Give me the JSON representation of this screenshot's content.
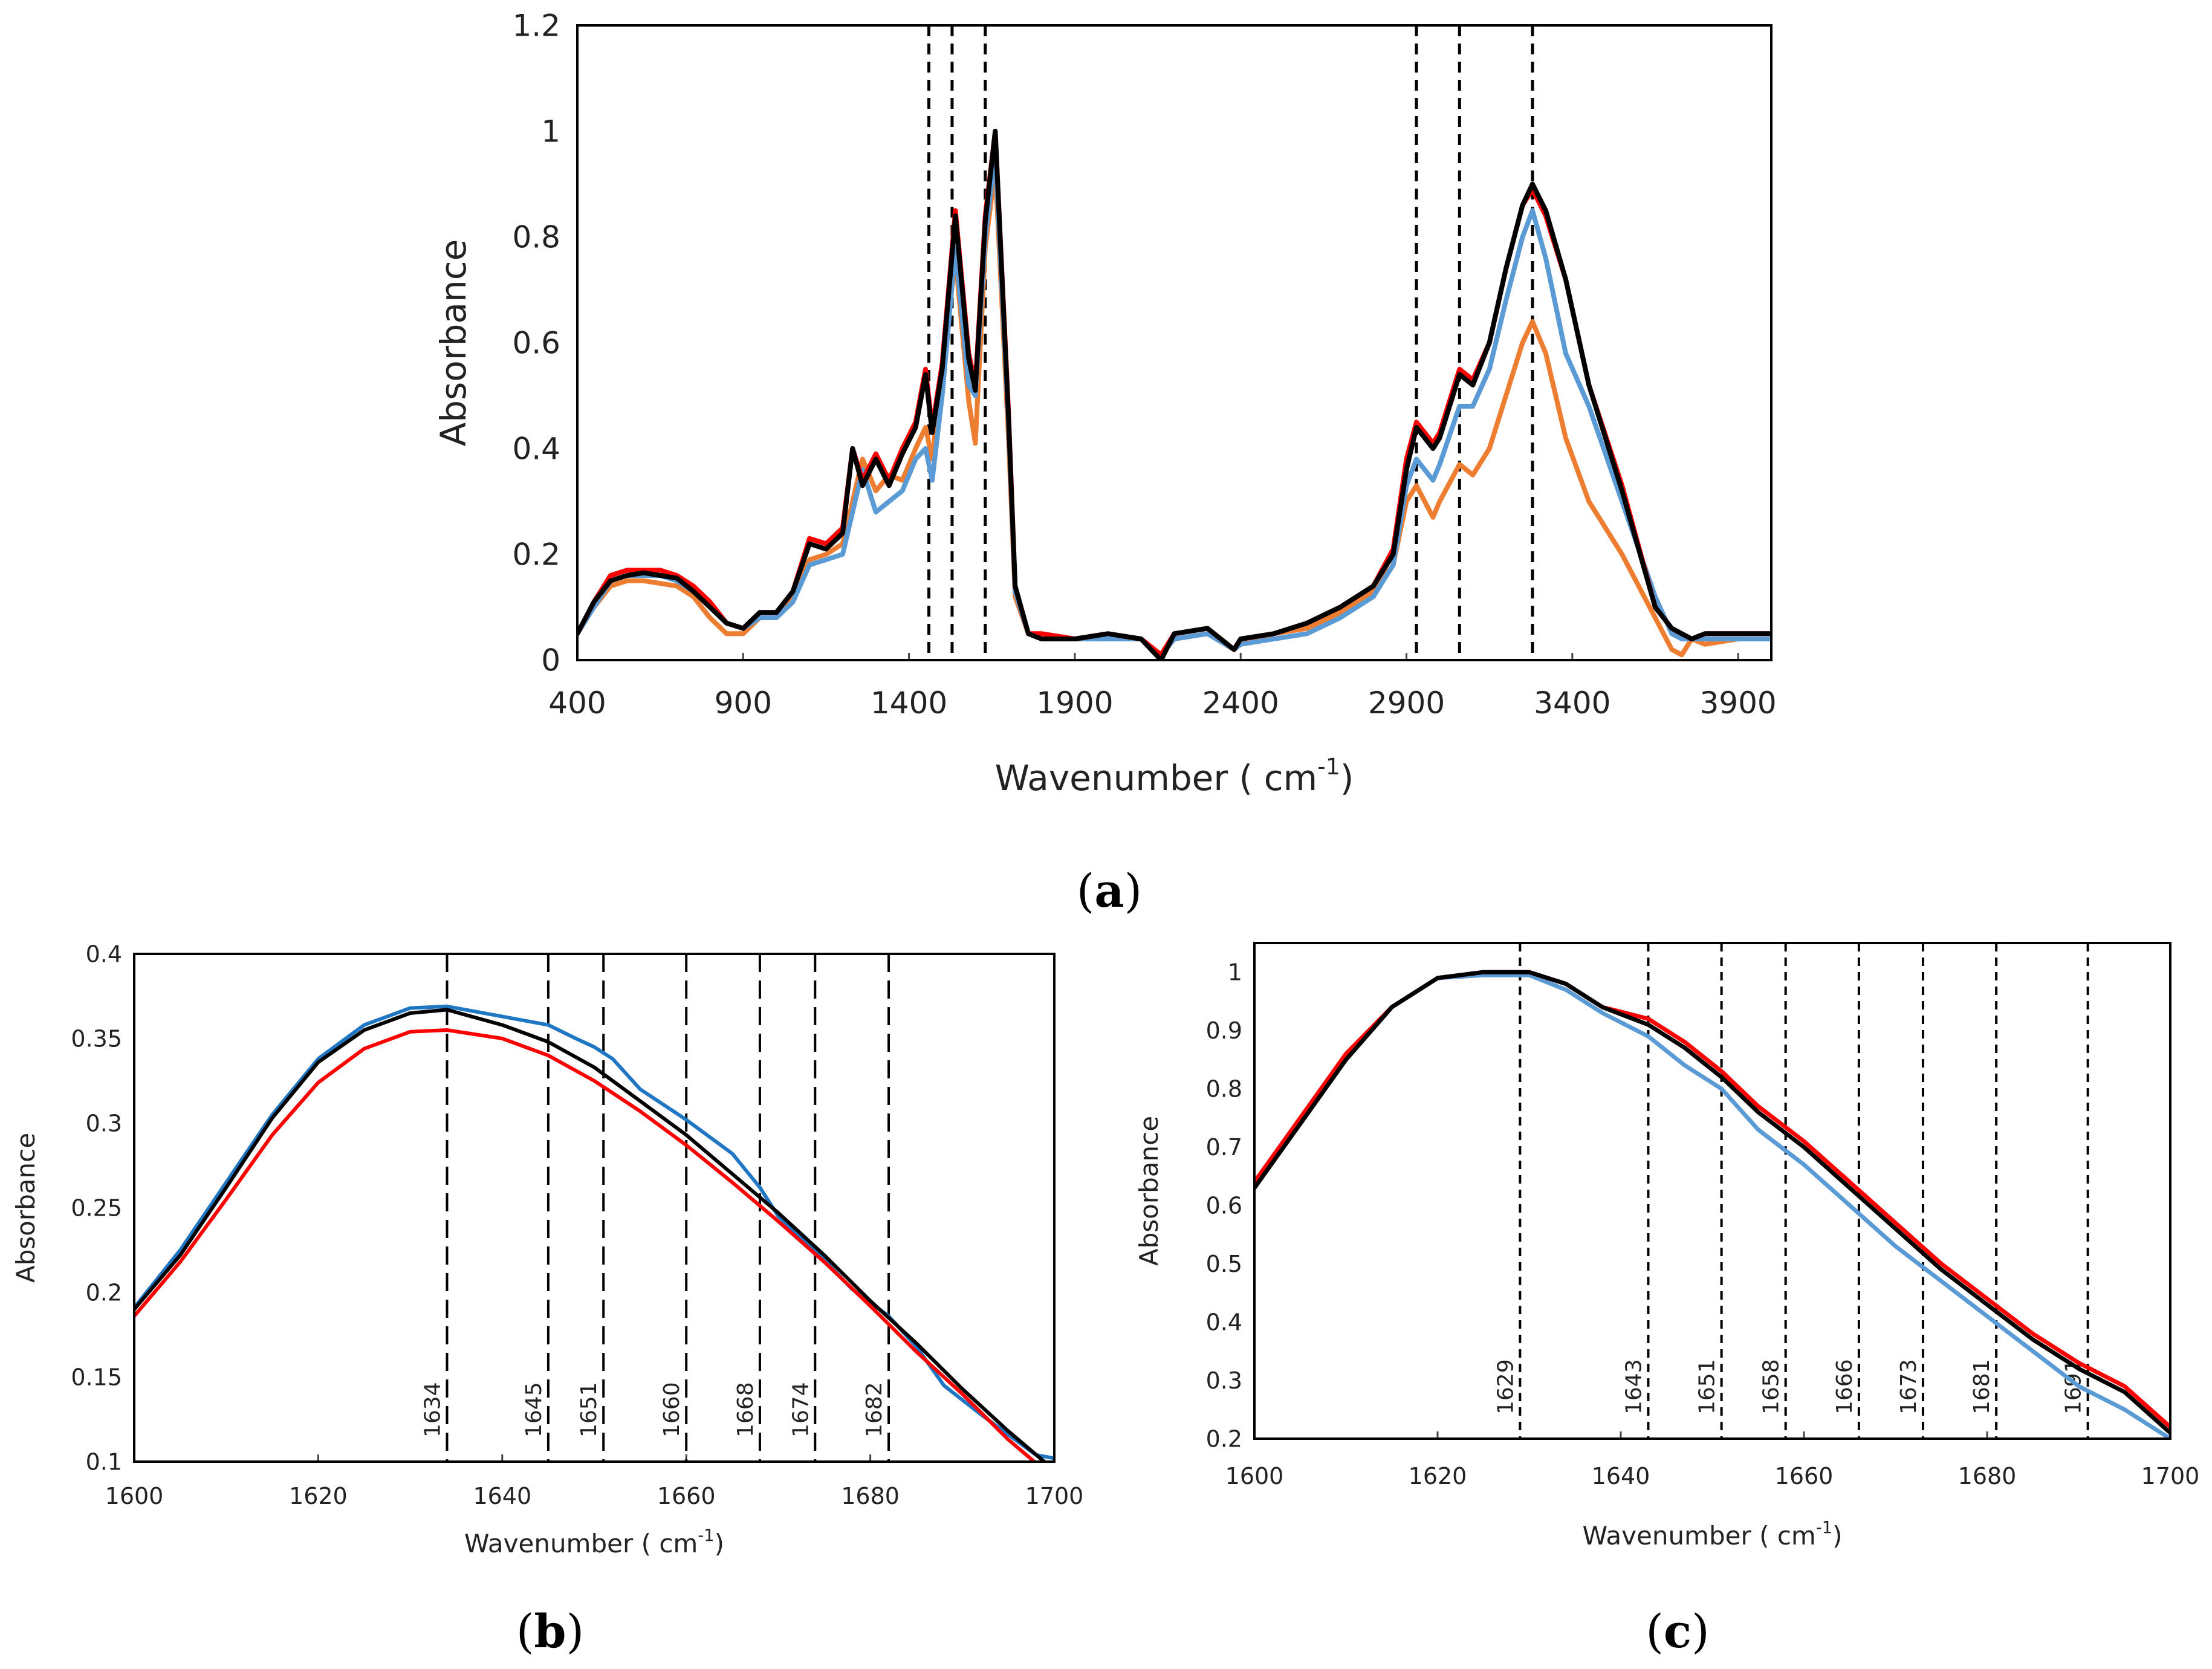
{
  "chart_data": [
    {
      "panel": "(a)",
      "type": "line",
      "xlabel": "Wavenumber ( cm",
      "xlabel_sup": "-1",
      "xlabel_end": ")",
      "ylabel": "Absorbance",
      "xlim": [
        400,
        4000
      ],
      "ylim": [
        0,
        1.2
      ],
      "xticks": [
        400,
        900,
        1400,
        1900,
        2400,
        2900,
        3400,
        3900
      ],
      "xtick_labels": [
        "400",
        "900",
        "1400",
        "1900",
        "2400",
        "2900",
        "3400",
        "3900"
      ],
      "yticks": [
        0,
        0.2,
        0.4,
        0.6,
        0.8,
        1.0,
        1.2
      ],
      "ytick_labels": [
        "0",
        "0.2",
        "0.4",
        "0.6",
        "0.8",
        "1",
        "1.2"
      ],
      "vlines": [
        1460,
        1530,
        1630,
        2930,
        3060,
        3280
      ],
      "grid": false,
      "series": [
        {
          "color": "#ed7d31",
          "x": [
            400,
            450,
            500,
            550,
            600,
            650,
            700,
            750,
            800,
            850,
            900,
            950,
            1000,
            1050,
            1100,
            1150,
            1200,
            1230,
            1260,
            1300,
            1340,
            1380,
            1420,
            1450,
            1470,
            1500,
            1540,
            1580,
            1600,
            1630,
            1660,
            1700,
            1720,
            1760,
            1800,
            1900,
            2000,
            2100,
            2160,
            2200,
            2300,
            2380,
            2400,
            2500,
            2600,
            2700,
            2800,
            2860,
            2900,
            2930,
            2980,
            3000,
            3060,
            3100,
            3150,
            3200,
            3250,
            3280,
            3320,
            3380,
            3450,
            3550,
            3650,
            3700,
            3730,
            3760,
            3800,
            3900,
            4000
          ],
          "y": [
            0.05,
            0.1,
            0.14,
            0.15,
            0.15,
            0.145,
            0.14,
            0.12,
            0.08,
            0.05,
            0.05,
            0.08,
            0.08,
            0.12,
            0.19,
            0.2,
            0.22,
            0.3,
            0.38,
            0.32,
            0.35,
            0.34,
            0.4,
            0.44,
            0.38,
            0.55,
            0.76,
            0.49,
            0.41,
            0.78,
            0.93,
            0.42,
            0.12,
            0.05,
            0.04,
            0.04,
            0.04,
            0.04,
            0.01,
            0.04,
            0.05,
            0.02,
            0.03,
            0.05,
            0.06,
            0.09,
            0.13,
            0.18,
            0.3,
            0.33,
            0.27,
            0.3,
            0.37,
            0.35,
            0.4,
            0.5,
            0.6,
            0.64,
            0.58,
            0.42,
            0.3,
            0.2,
            0.08,
            0.02,
            0.01,
            0.04,
            0.03,
            0.04,
            0.04
          ]
        },
        {
          "color": "#5b9bd5",
          "x": [
            400,
            450,
            500,
            550,
            600,
            650,
            700,
            750,
            800,
            850,
            900,
            950,
            1000,
            1050,
            1100,
            1150,
            1200,
            1230,
            1260,
            1300,
            1340,
            1380,
            1420,
            1450,
            1470,
            1500,
            1540,
            1580,
            1600,
            1630,
            1660,
            1700,
            1720,
            1760,
            1800,
            1900,
            2000,
            2100,
            2160,
            2200,
            2300,
            2380,
            2400,
            2500,
            2600,
            2700,
            2800,
            2860,
            2900,
            2930,
            2980,
            3000,
            3060,
            3100,
            3150,
            3200,
            3250,
            3280,
            3320,
            3380,
            3450,
            3550,
            3650,
            3700,
            3730,
            3760,
            3800,
            3900,
            4000
          ],
          "y": [
            0.05,
            0.1,
            0.15,
            0.16,
            0.16,
            0.16,
            0.15,
            0.13,
            0.1,
            0.07,
            0.06,
            0.08,
            0.08,
            0.11,
            0.18,
            0.19,
            0.2,
            0.28,
            0.36,
            0.28,
            0.3,
            0.32,
            0.38,
            0.4,
            0.34,
            0.5,
            0.78,
            0.52,
            0.5,
            0.8,
            0.96,
            0.45,
            0.13,
            0.05,
            0.04,
            0.04,
            0.04,
            0.04,
            0.01,
            0.04,
            0.05,
            0.02,
            0.03,
            0.04,
            0.05,
            0.08,
            0.12,
            0.18,
            0.33,
            0.38,
            0.34,
            0.37,
            0.48,
            0.48,
            0.55,
            0.68,
            0.8,
            0.85,
            0.76,
            0.58,
            0.48,
            0.3,
            0.12,
            0.05,
            0.04,
            0.04,
            0.04,
            0.04,
            0.04
          ]
        },
        {
          "color": "#ff0000",
          "x": [
            400,
            450,
            500,
            550,
            600,
            650,
            700,
            750,
            800,
            850,
            900,
            950,
            1000,
            1050,
            1100,
            1150,
            1200,
            1230,
            1260,
            1300,
            1340,
            1380,
            1420,
            1450,
            1470,
            1500,
            1540,
            1580,
            1600,
            1630,
            1660,
            1700,
            1720,
            1760,
            1800,
            1900,
            2000,
            2100,
            2160,
            2200,
            2300,
            2380,
            2400,
            2500,
            2600,
            2700,
            2800,
            2860,
            2900,
            2930,
            2980,
            3000,
            3060,
            3100,
            3150,
            3200,
            3250,
            3280,
            3320,
            3380,
            3450,
            3550,
            3650,
            3700,
            3730,
            3760,
            3800,
            3900,
            4000
          ],
          "y": [
            0.05,
            0.11,
            0.16,
            0.17,
            0.17,
            0.17,
            0.16,
            0.14,
            0.11,
            0.07,
            0.06,
            0.09,
            0.09,
            0.13,
            0.23,
            0.22,
            0.25,
            0.4,
            0.34,
            0.39,
            0.34,
            0.4,
            0.45,
            0.55,
            0.44,
            0.56,
            0.85,
            0.58,
            0.52,
            0.84,
            1.0,
            0.47,
            0.14,
            0.05,
            0.05,
            0.04,
            0.05,
            0.04,
            0.01,
            0.05,
            0.06,
            0.02,
            0.04,
            0.05,
            0.07,
            0.1,
            0.14,
            0.21,
            0.38,
            0.45,
            0.41,
            0.43,
            0.55,
            0.53,
            0.6,
            0.74,
            0.86,
            0.89,
            0.84,
            0.72,
            0.52,
            0.33,
            0.1,
            0.06,
            0.05,
            0.04,
            0.05,
            0.05,
            0.05
          ]
        },
        {
          "color": "#000000",
          "x": [
            400,
            450,
            500,
            550,
            600,
            650,
            700,
            750,
            800,
            850,
            900,
            950,
            1000,
            1050,
            1100,
            1150,
            1200,
            1230,
            1260,
            1300,
            1340,
            1380,
            1420,
            1450,
            1470,
            1500,
            1540,
            1580,
            1600,
            1630,
            1660,
            1700,
            1720,
            1760,
            1800,
            1900,
            2000,
            2100,
            2160,
            2200,
            2300,
            2380,
            2400,
            2500,
            2600,
            2700,
            2800,
            2860,
            2900,
            2930,
            2980,
            3000,
            3060,
            3100,
            3150,
            3200,
            3250,
            3280,
            3320,
            3380,
            3450,
            3550,
            3650,
            3700,
            3730,
            3760,
            3800,
            3900,
            4000
          ],
          "y": [
            0.05,
            0.11,
            0.15,
            0.16,
            0.165,
            0.16,
            0.155,
            0.13,
            0.1,
            0.07,
            0.06,
            0.09,
            0.09,
            0.13,
            0.22,
            0.21,
            0.24,
            0.4,
            0.33,
            0.38,
            0.33,
            0.39,
            0.44,
            0.54,
            0.43,
            0.55,
            0.84,
            0.57,
            0.51,
            0.83,
            1.0,
            0.46,
            0.14,
            0.05,
            0.04,
            0.04,
            0.05,
            0.04,
            0.0,
            0.05,
            0.06,
            0.02,
            0.04,
            0.05,
            0.07,
            0.1,
            0.14,
            0.2,
            0.36,
            0.44,
            0.4,
            0.42,
            0.54,
            0.52,
            0.6,
            0.74,
            0.86,
            0.9,
            0.85,
            0.72,
            0.52,
            0.32,
            0.1,
            0.06,
            0.05,
            0.04,
            0.05,
            0.05,
            0.05
          ]
        }
      ]
    },
    {
      "panel": "(b)",
      "type": "line",
      "xlabel": "Wavenumber ( cm",
      "xlabel_sup": "-1",
      "xlabel_end": ")",
      "ylabel": "Absorbance",
      "xlim": [
        1600,
        1700
      ],
      "ylim": [
        0.1,
        0.4
      ],
      "xticks": [
        1600,
        1620,
        1640,
        1660,
        1680,
        1700
      ],
      "xtick_labels": [
        "1600",
        "1620",
        "1640",
        "1660",
        "1680",
        "1700"
      ],
      "yticks": [
        0.1,
        0.15,
        0.2,
        0.25,
        0.3,
        0.35,
        0.4
      ],
      "ytick_labels": [
        "0.1",
        "0.15",
        "0.2",
        "0.25",
        "0.3",
        "0.35",
        "0.4"
      ],
      "vlines": [
        1634,
        1645,
        1651,
        1660,
        1668,
        1674,
        1682
      ],
      "vline_labels": [
        "1634",
        "1645",
        "1651",
        "1660",
        "1668",
        "1674",
        "1682"
      ],
      "grid": false,
      "series": [
        {
          "color": "#1f77c4",
          "x": [
            1600,
            1605,
            1610,
            1615,
            1620,
            1625,
            1630,
            1634,
            1640,
            1645,
            1648,
            1650,
            1652,
            1655,
            1660,
            1665,
            1668,
            1670,
            1674,
            1678,
            1682,
            1685,
            1688,
            1692,
            1696,
            1698,
            1700
          ],
          "y": [
            0.191,
            0.225,
            0.265,
            0.305,
            0.338,
            0.358,
            0.368,
            0.369,
            0.363,
            0.358,
            0.35,
            0.345,
            0.338,
            0.32,
            0.302,
            0.282,
            0.262,
            0.245,
            0.225,
            0.202,
            0.186,
            0.168,
            0.145,
            0.128,
            0.112,
            0.104,
            0.102
          ]
        },
        {
          "color": "#000000",
          "x": [
            1600,
            1605,
            1610,
            1615,
            1620,
            1625,
            1630,
            1634,
            1640,
            1645,
            1650,
            1655,
            1660,
            1665,
            1670,
            1675,
            1680,
            1685,
            1690,
            1695,
            1700
          ],
          "y": [
            0.19,
            0.222,
            0.262,
            0.303,
            0.336,
            0.355,
            0.365,
            0.367,
            0.358,
            0.348,
            0.333,
            0.313,
            0.293,
            0.27,
            0.247,
            0.222,
            0.195,
            0.17,
            0.143,
            0.118,
            0.095
          ]
        },
        {
          "color": "#ff0000",
          "x": [
            1600,
            1605,
            1610,
            1615,
            1620,
            1625,
            1630,
            1634,
            1640,
            1645,
            1650,
            1655,
            1660,
            1665,
            1670,
            1675,
            1680,
            1685,
            1690,
            1695,
            1700
          ],
          "y": [
            0.186,
            0.218,
            0.255,
            0.293,
            0.324,
            0.344,
            0.354,
            0.355,
            0.35,
            0.34,
            0.325,
            0.307,
            0.287,
            0.265,
            0.242,
            0.218,
            0.192,
            0.165,
            0.14,
            0.113,
            0.09
          ]
        }
      ]
    },
    {
      "panel": "(c)",
      "type": "line",
      "xlabel": "Wavenumber ( cm",
      "xlabel_sup": "-1",
      "xlabel_end": ")",
      "ylabel": "Absorbance",
      "xlim": [
        1600,
        1700
      ],
      "ylim": [
        0.2,
        1.05
      ],
      "xticks": [
        1600,
        1620,
        1640,
        1660,
        1680,
        1700
      ],
      "xtick_labels": [
        "1600",
        "1620",
        "1640",
        "1660",
        "1680",
        "1700"
      ],
      "yticks": [
        0.2,
        0.3,
        0.4,
        0.5,
        0.6,
        0.7,
        0.8,
        0.9,
        1.0
      ],
      "ytick_labels": [
        "0.2",
        "0.3",
        "0.4",
        "0.5",
        "0.6",
        "0.7",
        "0.8",
        "0.9",
        "1"
      ],
      "vlines": [
        1629,
        1643,
        1651,
        1658,
        1666,
        1673,
        1681,
        1691
      ],
      "vline_labels": [
        "1629",
        "1643",
        "1651",
        "1658",
        "1666",
        "1673",
        "1681",
        "1691"
      ],
      "grid": false,
      "series": [
        {
          "color": "#5b9bd5",
          "x": [
            1600,
            1605,
            1610,
            1615,
            1620,
            1625,
            1630,
            1634,
            1638,
            1643,
            1647,
            1651,
            1655,
            1660,
            1665,
            1670,
            1675,
            1680,
            1685,
            1690,
            1695,
            1700
          ],
          "y": [
            0.64,
            0.74,
            0.85,
            0.94,
            0.99,
            0.995,
            0.995,
            0.97,
            0.93,
            0.89,
            0.84,
            0.8,
            0.73,
            0.67,
            0.6,
            0.53,
            0.47,
            0.41,
            0.35,
            0.29,
            0.25,
            0.2
          ]
        },
        {
          "color": "#ff0000",
          "x": [
            1600,
            1605,
            1610,
            1615,
            1620,
            1625,
            1630,
            1634,
            1638,
            1643,
            1647,
            1651,
            1655,
            1660,
            1665,
            1670,
            1675,
            1680,
            1685,
            1690,
            1695,
            1700
          ],
          "y": [
            0.64,
            0.75,
            0.86,
            0.94,
            0.99,
            1.0,
            1.0,
            0.98,
            0.94,
            0.92,
            0.88,
            0.83,
            0.77,
            0.71,
            0.64,
            0.57,
            0.5,
            0.44,
            0.38,
            0.33,
            0.29,
            0.22
          ]
        },
        {
          "color": "#000000",
          "x": [
            1600,
            1605,
            1610,
            1615,
            1620,
            1625,
            1630,
            1634,
            1638,
            1643,
            1647,
            1651,
            1655,
            1660,
            1665,
            1670,
            1675,
            1680,
            1685,
            1690,
            1695,
            1700
          ],
          "y": [
            0.63,
            0.74,
            0.85,
            0.94,
            0.99,
            1.0,
            1.0,
            0.98,
            0.94,
            0.91,
            0.87,
            0.82,
            0.76,
            0.7,
            0.63,
            0.56,
            0.49,
            0.43,
            0.37,
            0.32,
            0.28,
            0.21
          ]
        }
      ]
    }
  ]
}
